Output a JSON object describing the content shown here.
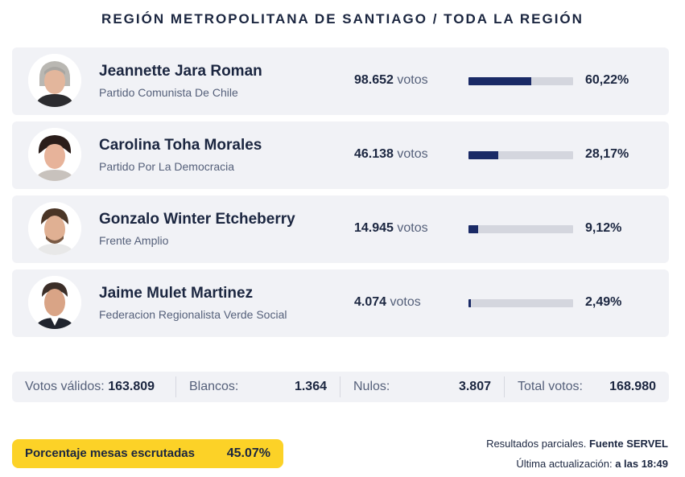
{
  "header": {
    "title": "REGIÓN METROPOLITANA DE SANTIAGO / TODA LA REGIÓN"
  },
  "candidates": [
    {
      "name": "Jeannette Jara Roman",
      "party": "Partido Comunista De Chile",
      "votes": "98.652",
      "votes_label": "votos",
      "percent": "60,22%",
      "share": 0.6022
    },
    {
      "name": "Carolina Toha Morales",
      "party": "Partido Por La Democracia",
      "votes": "46.138",
      "votes_label": "votos",
      "percent": "28,17%",
      "share": 0.2817
    },
    {
      "name": "Gonzalo Winter Etcheberry",
      "party": "Frente Amplio",
      "votes": "14.945",
      "votes_label": "votos",
      "percent": "9,12%",
      "share": 0.0912
    },
    {
      "name": "Jaime Mulet Martinez",
      "party": "Federacion Regionalista Verde Social",
      "votes": "4.074",
      "votes_label": "votos",
      "percent": "2,49%",
      "share": 0.0249
    }
  ],
  "totals": {
    "valid_label": "Votos válidos:",
    "valid_value": "163.809",
    "blank_label": "Blancos:",
    "blank_value": "1.364",
    "null_label": "Nulos:",
    "null_value": "3.807",
    "total_label": "Total votos:",
    "total_value": "168.980"
  },
  "progress": {
    "label": "Porcentaje mesas escrutadas",
    "value": "45.07%"
  },
  "source": {
    "partial_label": "Resultados parciales.",
    "source_label": "Fuente SERVEL",
    "updated_label": "Última actualización:",
    "updated_value": "a las 18:49"
  },
  "colors": {
    "bar_fill": "#1a2a66",
    "bar_track": "#d4d6de",
    "card_bg": "#f1f2f6",
    "progress_bg": "#fcd227",
    "text": "#1b2640"
  }
}
